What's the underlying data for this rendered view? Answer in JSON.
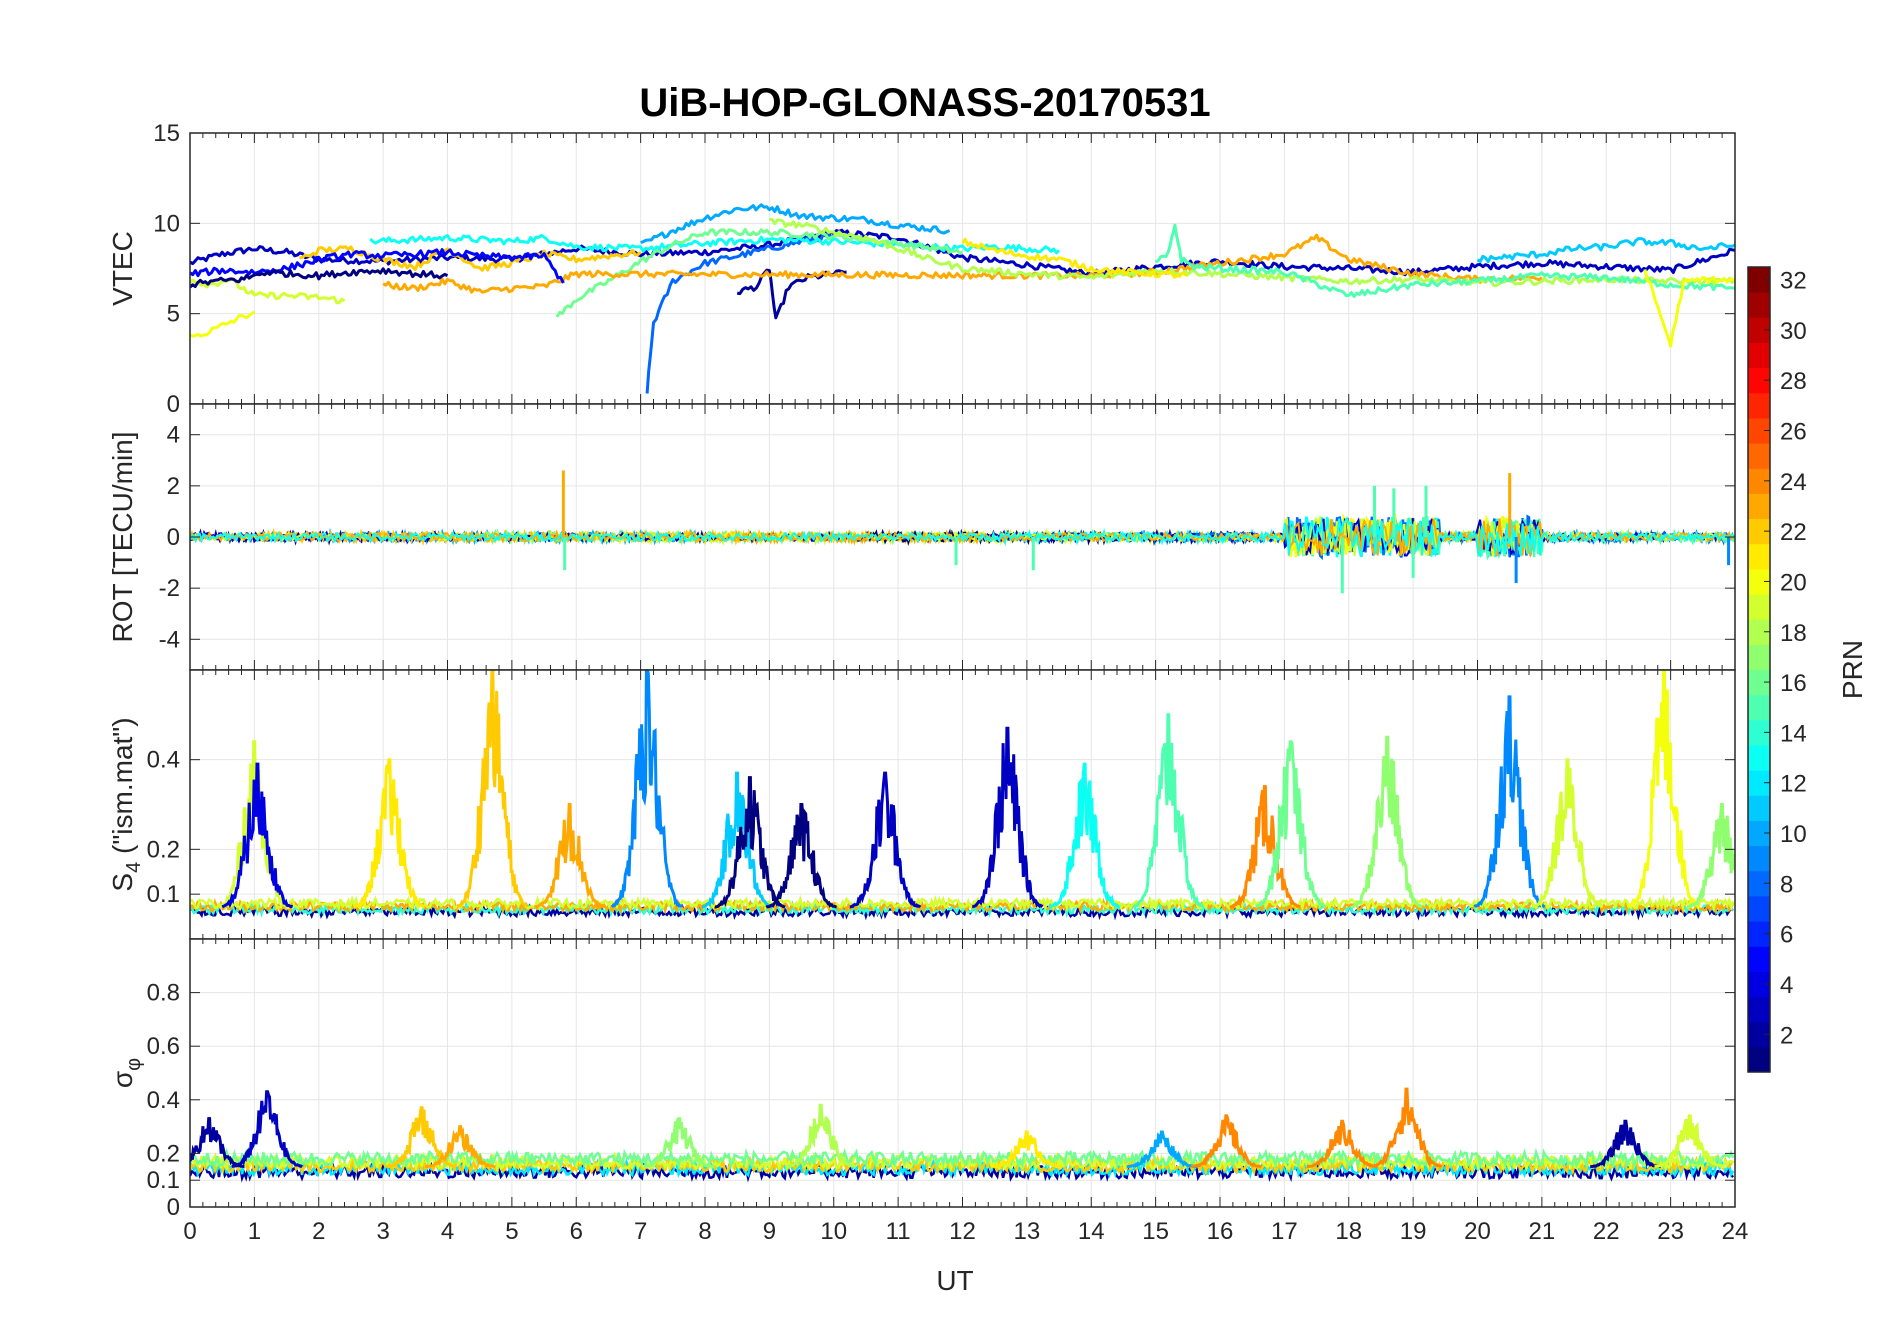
{
  "chart_data": {
    "type": "line",
    "title": "UiB-HOP-GLONASS-20170531",
    "xlabel": "UT",
    "xlim": [
      0,
      24
    ],
    "x_ticks": [
      "0",
      "1",
      "2",
      "3",
      "4",
      "5",
      "6",
      "7",
      "8",
      "9",
      "10",
      "11",
      "12",
      "13",
      "14",
      "15",
      "16",
      "17",
      "18",
      "19",
      "20",
      "21",
      "22",
      "23",
      "24"
    ],
    "panels": [
      {
        "name": "vtec",
        "ylabel": "VTEC",
        "ylim": [
          0,
          15
        ],
        "y_ticks": [
          "0",
          "5",
          "10",
          "15"
        ],
        "y_tick_values": [
          0,
          5,
          10,
          15
        ],
        "series": [
          {
            "name": "PRN 3",
            "prn": 3,
            "x": [
              0,
              0.5,
              1,
              1.5,
              2,
              3,
              4,
              5,
              6,
              7,
              8,
              9,
              10,
              11,
              12,
              13,
              14,
              15,
              16,
              17,
              18,
              19,
              20,
              21,
              22,
              23,
              24
            ],
            "y": [
              7.8,
              8.3,
              8.6,
              8.4,
              8.0,
              7.9,
              8.1,
              8.0,
              8.6,
              8.3,
              8.4,
              8.8,
              9.5,
              9.2,
              8.1,
              7.7,
              7.2,
              7.6,
              7.9,
              7.6,
              7.5,
              7.3,
              7.6,
              7.8,
              7.6,
              7.4,
              8.5
            ]
          },
          {
            "name": "PRN 2",
            "prn": 2,
            "x": [
              8.5,
              8.8,
              9.0,
              9.1,
              9.3,
              9.6,
              10.0,
              10.2
            ],
            "y": [
              6.2,
              6.5,
              7.5,
              4.6,
              6.5,
              7.0,
              7.2,
              7.3
            ]
          },
          {
            "name": "PRN 8",
            "prn": 8,
            "x": [
              7.1,
              7.2,
              7.5,
              8.0,
              8.5,
              9.0,
              9.5,
              10.0
            ],
            "y": [
              0.7,
              4.5,
              6.8,
              7.8,
              8.2,
              8.6,
              9.0,
              9.3
            ]
          },
          {
            "name": "PRN 10",
            "prn": 10,
            "x": [
              7,
              7.5,
              8,
              8.5,
              9,
              9.5,
              10,
              10.5,
              11,
              11.5,
              11.8
            ],
            "y": [
              8.8,
              9.6,
              10.3,
              10.8,
              10.9,
              10.4,
              10.3,
              10.2,
              9.9,
              9.7,
              9.6
            ]
          },
          {
            "name": "PRN 13",
            "prn": 13,
            "x": [
              2.8,
              3.5,
              4,
              4.5,
              5,
              5.5,
              6,
              7,
              8,
              9,
              10,
              11,
              12,
              12.5,
              13,
              13.5
            ],
            "y": [
              9.0,
              9.1,
              9.2,
              9.1,
              9.0,
              9.2,
              8.7,
              8.6,
              8.9,
              9.1,
              9.0,
              8.8,
              8.6,
              8.7,
              8.6,
              8.5
            ]
          },
          {
            "name": "PRN 16",
            "prn": 16,
            "x": [
              5.7,
              6.0,
              6.5,
              7.0,
              7.5,
              8,
              9,
              10,
              11,
              12
            ],
            "y": [
              4.8,
              5.8,
              6.8,
              7.9,
              8.8,
              9.5,
              9.5,
              9.3,
              8.9,
              8.4
            ]
          },
          {
            "name": "PRN 22",
            "prn": 22,
            "x": [
              1.7,
              2,
              2.5,
              3,
              3.5,
              4,
              4.5,
              5,
              5.5,
              6,
              6.5,
              7
            ],
            "y": [
              8.0,
              8.5,
              8.6,
              8.0,
              7.6,
              8.6,
              7.5,
              7.8,
              8.3,
              8.0,
              8.2,
              8.4
            ]
          },
          {
            "name": "PRN 23",
            "prn": 23,
            "x": [
              3,
              3.5,
              4,
              4.5,
              5,
              5.5,
              6,
              14,
              15,
              16,
              17,
              17.5,
              18,
              19,
              20,
              21
            ],
            "y": [
              6.6,
              6.4,
              6.8,
              6.2,
              6.4,
              6.5,
              7.2,
              7.1,
              7.3,
              7.8,
              8.3,
              9.2,
              8.0,
              7.2,
              6.9,
              7.0
            ]
          },
          {
            "name": "PRN 19",
            "prn": 19,
            "x": [
              0,
              0.3,
              0.6,
              1,
              1.5,
              2,
              2.4
            ],
            "y": [
              6.9,
              6.6,
              6.9,
              6.0,
              6.0,
              5.9,
              5.7
            ]
          },
          {
            "name": "PRN 20",
            "prn": 20,
            "x": [
              0,
              0.3,
              0.6,
              0.8,
              1.0
            ],
            "y": [
              3.7,
              4.0,
              4.5,
              4.8,
              5.1
            ]
          },
          {
            "name": "PRN 18",
            "prn": 18,
            "x": [
              9,
              9.5,
              10,
              10.5,
              11,
              11.5,
              12,
              13,
              14,
              15,
              16,
              17,
              18,
              19,
              20,
              21,
              22,
              23,
              24
            ],
            "y": [
              10.1,
              9.9,
              9.5,
              9.2,
              8.6,
              8.0,
              7.5,
              7.2,
              7.0,
              7.4,
              7.2,
              7.0,
              6.8,
              6.9,
              6.7,
              6.8,
              6.9,
              6.8,
              6.8
            ]
          },
          {
            "name": "PRN 21",
            "prn": 21,
            "x": [
              12,
              12.5,
              13,
              13.5,
              14,
              14.5,
              15,
              15.5
            ],
            "y": [
              9.0,
              8.5,
              8.2,
              8.0,
              7.5,
              7.3,
              7.2,
              7.1
            ]
          },
          {
            "name": "PRN 15",
            "prn": 15,
            "x": [
              15,
              15.2,
              15.3,
              15.4,
              15.6,
              16,
              17,
              18,
              19,
              20,
              21,
              22,
              23,
              24
            ],
            "y": [
              7.8,
              8.3,
              9.9,
              8.0,
              7.6,
              7.5,
              7.3,
              6.0,
              6.6,
              6.8,
              7.1,
              7.0,
              6.6,
              6.4
            ]
          },
          {
            "name": "PRN 11",
            "prn": 11,
            "x": [
              20,
              21,
              21.5,
              22,
              22.5,
              23,
              23.5,
              24
            ],
            "y": [
              8.0,
              8.3,
              8.6,
              8.7,
              9.0,
              8.9,
              8.6,
              8.8
            ]
          },
          {
            "name": "PRN 20b",
            "prn": 20,
            "x": [
              22.6,
              23,
              23.2,
              23.5,
              24
            ],
            "y": [
              7.4,
              3.3,
              6.7,
              6.9,
              6.8
            ]
          },
          {
            "name": "PRN 5",
            "prn": 5,
            "x": [
              0,
              0.5,
              1,
              1.5,
              2,
              2.5,
              3,
              3.5,
              4,
              4.5,
              5,
              5.5,
              5.8
            ],
            "y": [
              7.2,
              7.4,
              7.3,
              7.5,
              8.0,
              8.3,
              8.2,
              8.3,
              8.4,
              8.2,
              8.1,
              8.2,
              6.7
            ]
          },
          {
            "name": "PRN 1",
            "prn": 1,
            "x": [
              0,
              0.4,
              0.8,
              1.2,
              1.6,
              2,
              2.5,
              3,
              3.5,
              4
            ],
            "y": [
              6.6,
              6.8,
              6.9,
              7.3,
              7.2,
              7.1,
              7.3,
              7.4,
              7.2,
              7.1
            ]
          }
        ]
      },
      {
        "name": "rot",
        "ylabel": "ROT [TECU/min]",
        "ylim": [
          -5.2,
          5.2
        ],
        "y_ticks": [
          "-4",
          "-2",
          "0",
          "2",
          "4"
        ],
        "y_tick_values": [
          -4,
          -2,
          0,
          2,
          4
        ],
        "baseline": 0,
        "noise": {
          "base_amplitude": 0.35,
          "spikes": [
            {
              "t": 5.8,
              "value": 2.6
            },
            {
              "t": 5.82,
              "value": -1.3
            },
            {
              "t": 17.9,
              "value": -2.2
            },
            {
              "t": 18.4,
              "value": 2.0
            },
            {
              "t": 18.7,
              "value": 1.9
            },
            {
              "t": 19.2,
              "value": 2.0
            },
            {
              "t": 19.0,
              "value": -1.6
            },
            {
              "t": 20.5,
              "value": 2.5
            },
            {
              "t": 20.6,
              "value": -1.8
            },
            {
              "t": 13.1,
              "value": -1.3
            },
            {
              "t": 11.9,
              "value": -1.1
            },
            {
              "t": 23.9,
              "value": -1.1
            }
          ]
        },
        "active_intervals": [
          [
            17.0,
            19.4
          ],
          [
            20.0,
            21.0
          ]
        ],
        "series_prns": [
          3,
          10,
          16,
          19,
          23,
          1,
          13,
          8,
          20,
          15,
          22
        ]
      },
      {
        "name": "s4",
        "ylabel": "S4 (\"ism.mat\")",
        "ylabel_main": "S",
        "ylabel_sub": "4",
        "ylabel_rest": " (\"ism.mat\")",
        "ylim": [
          0,
          0.6
        ],
        "y_ticks": [
          "0.1",
          "0.2",
          "0.4"
        ],
        "y_tick_values": [
          0.1,
          0.2,
          0.4
        ],
        "base_level": 0.07,
        "peaks": [
          {
            "t": 1.0,
            "value": 0.44,
            "prn": 19
          },
          {
            "t": 1.05,
            "value": 0.39,
            "prn": 4
          },
          {
            "t": 3.1,
            "value": 0.4,
            "prn": 21
          },
          {
            "t": 4.7,
            "value": 0.6,
            "prn": 22
          },
          {
            "t": 5.9,
            "value": 0.3,
            "prn": 23
          },
          {
            "t": 7.1,
            "value": 0.6,
            "prn": 9
          },
          {
            "t": 8.5,
            "value": 0.37,
            "prn": 11
          },
          {
            "t": 8.7,
            "value": 0.36,
            "prn": 1
          },
          {
            "t": 9.5,
            "value": 0.3,
            "prn": 1
          },
          {
            "t": 10.8,
            "value": 0.37,
            "prn": 3
          },
          {
            "t": 12.7,
            "value": 0.47,
            "prn": 3
          },
          {
            "t": 13.9,
            "value": 0.39,
            "prn": 13
          },
          {
            "t": 15.2,
            "value": 0.5,
            "prn": 15
          },
          {
            "t": 16.7,
            "value": 0.34,
            "prn": 24
          },
          {
            "t": 17.1,
            "value": 0.44,
            "prn": 16
          },
          {
            "t": 18.6,
            "value": 0.45,
            "prn": 17
          },
          {
            "t": 20.5,
            "value": 0.54,
            "prn": 9
          },
          {
            "t": 21.4,
            "value": 0.4,
            "prn": 19
          },
          {
            "t": 22.9,
            "value": 0.6,
            "prn": 20
          },
          {
            "t": 23.8,
            "value": 0.3,
            "prn": 17
          }
        ]
      },
      {
        "name": "sigma",
        "ylabel": "σφ",
        "ylabel_main": "σ",
        "ylabel_sub": "φ",
        "ylim": [
          0,
          1
        ],
        "y_ticks": [
          "0",
          "0.1",
          "0.2",
          "0.4",
          "0.6",
          "0.8"
        ],
        "y_tick_values": [
          0,
          0.1,
          0.2,
          0.4,
          0.6,
          0.8
        ],
        "base_level": 0.15,
        "peaks": [
          {
            "t": 0.3,
            "value": 0.33,
            "prn": 2
          },
          {
            "t": 1.2,
            "value": 0.43,
            "prn": 3
          },
          {
            "t": 3.6,
            "value": 0.37,
            "prn": 22
          },
          {
            "t": 4.2,
            "value": 0.3,
            "prn": 23
          },
          {
            "t": 7.6,
            "value": 0.33,
            "prn": 17
          },
          {
            "t": 9.8,
            "value": 0.38,
            "prn": 18
          },
          {
            "t": 13.0,
            "value": 0.28,
            "prn": 21
          },
          {
            "t": 15.1,
            "value": 0.28,
            "prn": 10
          },
          {
            "t": 16.1,
            "value": 0.34,
            "prn": 24
          },
          {
            "t": 17.9,
            "value": 0.32,
            "prn": 24
          },
          {
            "t": 18.9,
            "value": 0.44,
            "prn": 24
          },
          {
            "t": 22.3,
            "value": 0.32,
            "prn": 2
          },
          {
            "t": 23.3,
            "value": 0.34,
            "prn": 19
          }
        ]
      }
    ],
    "colorbar": {
      "label": "PRN",
      "range": [
        1,
        32
      ],
      "ticks": [
        "2",
        "4",
        "6",
        "8",
        "10",
        "12",
        "14",
        "16",
        "18",
        "20",
        "22",
        "24",
        "26",
        "28",
        "30",
        "32"
      ],
      "tick_values": [
        2,
        4,
        6,
        8,
        10,
        12,
        14,
        16,
        18,
        20,
        22,
        24,
        26,
        28,
        30,
        32
      ],
      "colormap": "jet"
    }
  }
}
